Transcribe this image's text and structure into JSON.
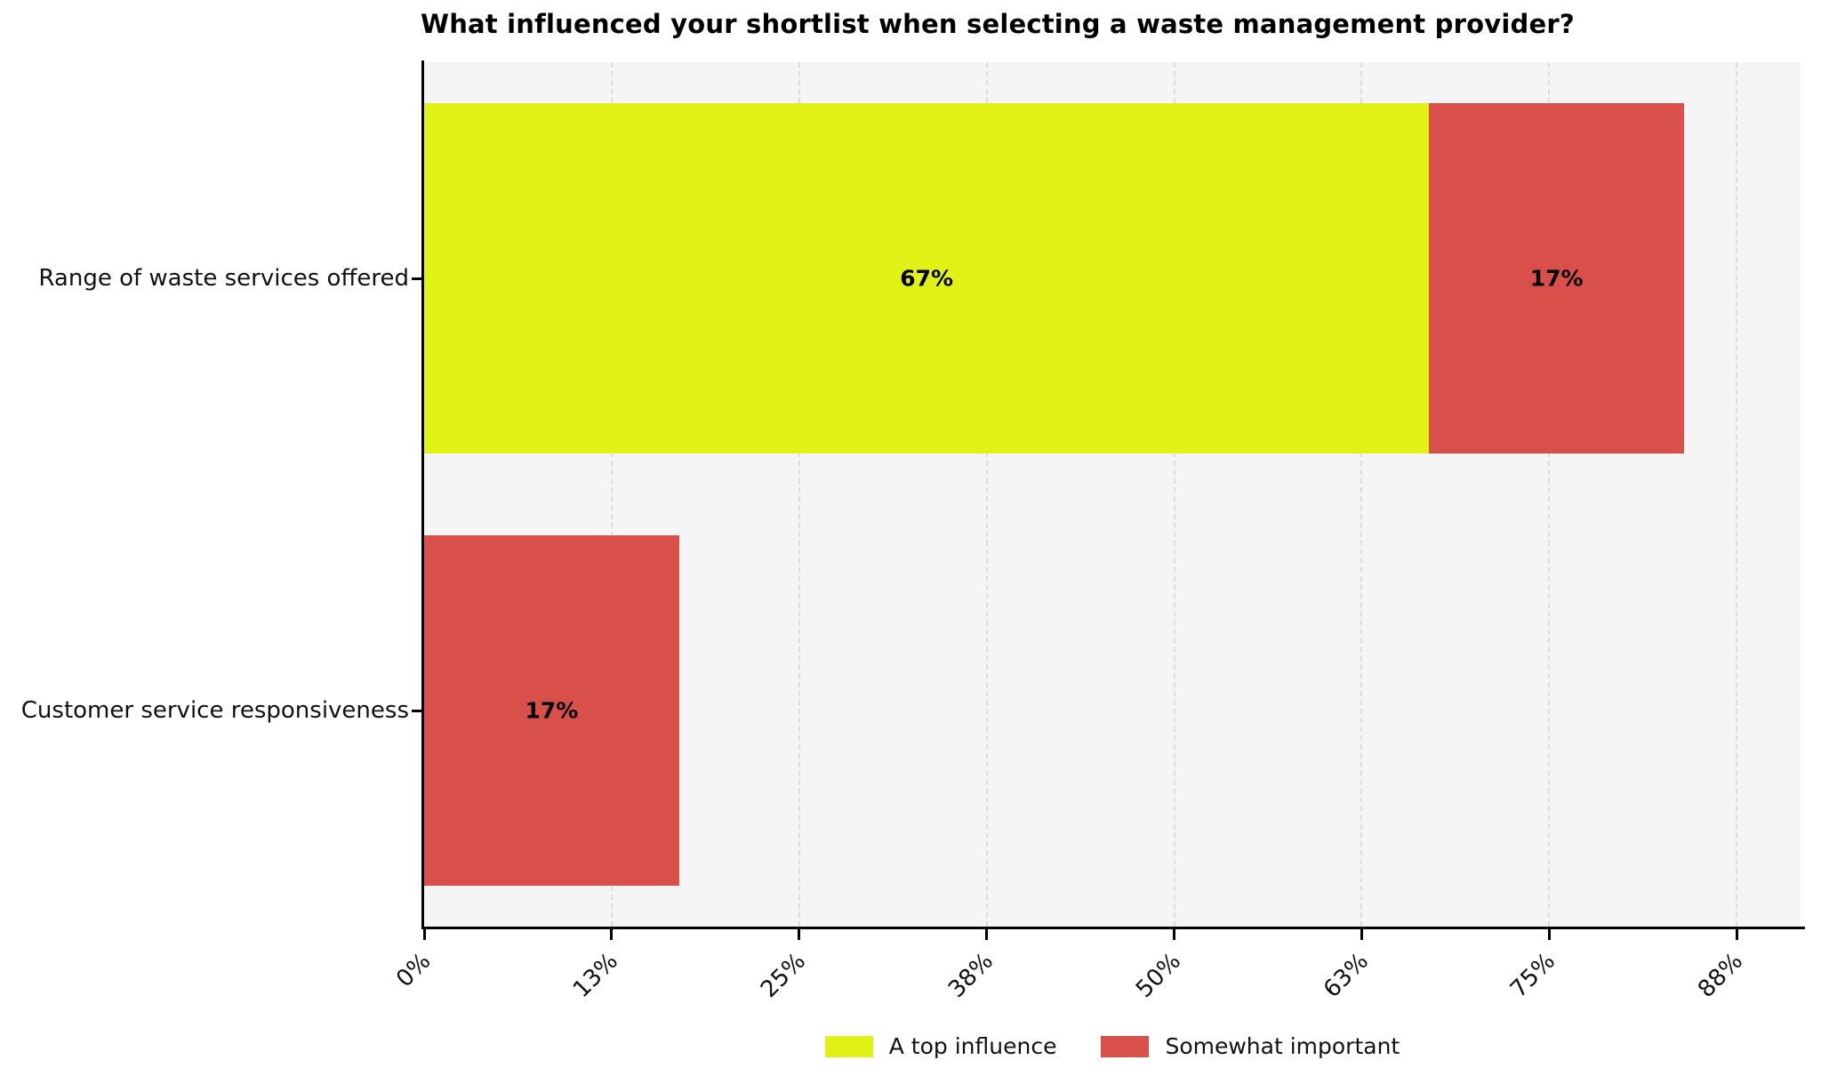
{
  "title": "What influenced your shortlist when selecting a waste management provider?",
  "chart_data": {
    "type": "bar",
    "orientation": "horizontal",
    "stacked": true,
    "title": "What influenced your shortlist when selecting a waste management provider?",
    "xlabel": "",
    "ylabel": "",
    "categories": [
      "Range of waste services offered",
      "Customer service responsiveness"
    ],
    "series": [
      {
        "name": "A top influence",
        "color": "#e0f216",
        "values": [
          67,
          0
        ]
      },
      {
        "name": "Somewhat important",
        "color": "#d9504b",
        "values": [
          17,
          17
        ]
      }
    ],
    "bar_value_labels": [
      [
        "67%",
        "17%"
      ],
      [
        "",
        "17%"
      ]
    ],
    "x_ticks": [
      {
        "pct": 0,
        "label": "0%"
      },
      {
        "pct": 12.5,
        "label": "13%"
      },
      {
        "pct": 25,
        "label": "25%"
      },
      {
        "pct": 37.5,
        "label": "38%"
      },
      {
        "pct": 50,
        "label": "50%"
      },
      {
        "pct": 62.5,
        "label": "63%"
      },
      {
        "pct": 75,
        "label": "75%"
      },
      {
        "pct": 87.5,
        "label": "88%"
      }
    ],
    "xlim": [
      0,
      91.8
    ],
    "grid": "vertical-dashed",
    "plot_background": "#f5f5f5",
    "axis_color": "#000000",
    "legend_position": "bottom-center",
    "legend": [
      "A top influence",
      "Somewhat important"
    ]
  }
}
